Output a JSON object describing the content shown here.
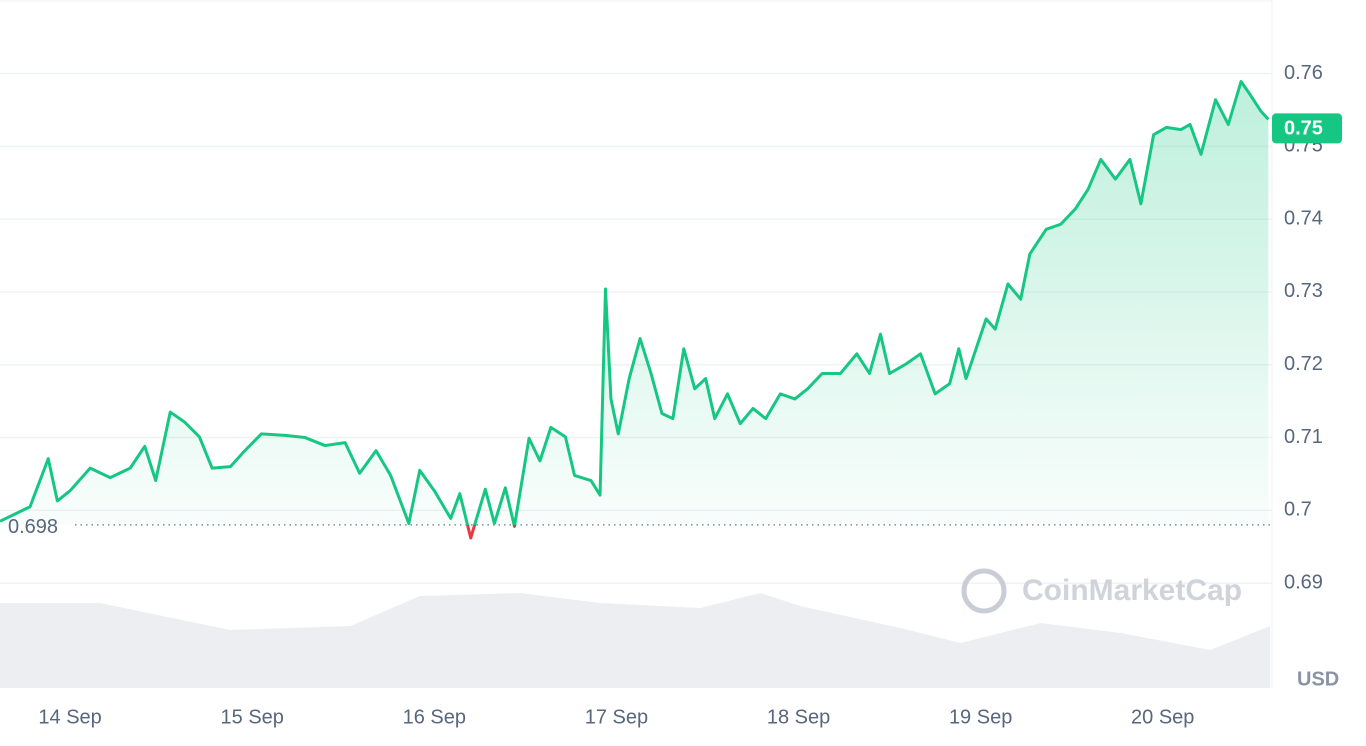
{
  "chart_data": {
    "type": "line",
    "xlim": [
      13.615,
      20.6
    ],
    "xticks": [
      {
        "value": 14,
        "label": "14 Sep"
      },
      {
        "value": 15,
        "label": "15 Sep"
      },
      {
        "value": 16,
        "label": "16 Sep"
      },
      {
        "value": 17,
        "label": "17 Sep"
      },
      {
        "value": 18,
        "label": "18 Sep"
      },
      {
        "value": 19,
        "label": "19 Sep"
      },
      {
        "value": 20,
        "label": "20 Sep"
      }
    ],
    "ylim": [
      0.6756,
      0.7701
    ],
    "yticks": [
      0.69,
      0.7,
      0.71,
      0.72,
      0.73,
      0.74,
      0.75,
      0.76
    ],
    "grid": true,
    "currency": "USD",
    "watermark": "CoinMarketCap",
    "baseline": 0.698,
    "current_price": 0.75,
    "up_color": "#16c784",
    "down_color": "#ea3943",
    "series": [
      {
        "x": [
          13.615,
          13.78,
          13.88,
          13.93,
          14.0,
          14.11,
          14.22,
          14.33,
          14.41,
          14.47,
          14.55,
          14.63,
          14.71,
          14.78,
          14.88,
          14.96,
          15.05,
          15.18,
          15.29,
          15.4,
          15.51,
          15.59,
          15.68,
          15.76,
          15.86,
          15.92,
          16.0,
          16.09,
          16.14,
          16.2,
          16.28,
          16.33,
          16.39,
          16.44,
          16.52,
          16.58,
          16.64,
          16.72,
          16.77,
          16.86,
          16.91,
          16.94,
          16.97,
          17.01,
          17.07,
          17.13,
          17.19,
          17.25,
          17.31,
          17.37,
          17.43,
          17.49,
          17.54,
          17.61,
          17.68,
          17.75,
          17.82,
          17.9,
          17.98,
          18.05,
          18.13,
          18.23,
          18.32,
          18.39,
          18.45,
          18.5,
          18.59,
          18.67,
          18.75,
          18.83,
          18.88,
          18.92,
          19.03,
          19.08,
          19.15,
          19.22,
          19.27,
          19.36,
          19.44,
          19.52,
          19.59,
          19.66,
          19.74,
          19.82,
          19.88,
          19.95,
          20.02,
          20.1,
          20.15,
          20.21,
          20.29,
          20.36,
          20.43,
          20.48,
          20.54,
          20.58
        ],
        "values": [
          0.6985,
          0.7005,
          0.7071,
          0.7013,
          0.7027,
          0.7058,
          0.7045,
          0.7058,
          0.7088,
          0.7041,
          0.7135,
          0.7121,
          0.7101,
          0.7058,
          0.706,
          0.7082,
          0.7105,
          0.7103,
          0.71,
          0.7089,
          0.7093,
          0.7051,
          0.7082,
          0.7048,
          0.6982,
          0.7055,
          0.7027,
          0.6989,
          0.7023,
          0.6962,
          0.7029,
          0.6982,
          0.7031,
          0.6978,
          0.7099,
          0.7068,
          0.7114,
          0.7101,
          0.7048,
          0.7041,
          0.7021,
          0.7304,
          0.7153,
          0.7105,
          0.7181,
          0.7236,
          0.7188,
          0.7133,
          0.7126,
          0.7222,
          0.7167,
          0.7181,
          0.7126,
          0.716,
          0.7119,
          0.714,
          0.7126,
          0.716,
          0.7153,
          0.7167,
          0.7188,
          0.7188,
          0.7215,
          0.7188,
          0.7242,
          0.7188,
          0.7201,
          0.7215,
          0.716,
          0.7174,
          0.7222,
          0.7181,
          0.7263,
          0.7249,
          0.7311,
          0.729,
          0.7352,
          0.7386,
          0.7393,
          0.7414,
          0.7441,
          0.7482,
          0.7455,
          0.7482,
          0.7421,
          0.7516,
          0.7526,
          0.7523,
          0.753,
          0.7489,
          0.7564,
          0.753,
          0.7589,
          0.7571,
          0.7548,
          0.7537
        ]
      }
    ],
    "y2lim": [
      0,
      100
    ],
    "volume": {
      "color": "#eceef2",
      "x": [
        13.615,
        14.165,
        14.88,
        15.54,
        15.92,
        16.47,
        16.91,
        17.46,
        17.79,
        18.01,
        18.56,
        18.89,
        19.33,
        19.77,
        20.26,
        20.59
      ],
      "values": [
        85,
        85,
        58,
        62,
        92,
        95,
        85,
        80,
        95,
        82,
        60,
        45,
        65,
        55,
        38,
        62
      ]
    }
  }
}
